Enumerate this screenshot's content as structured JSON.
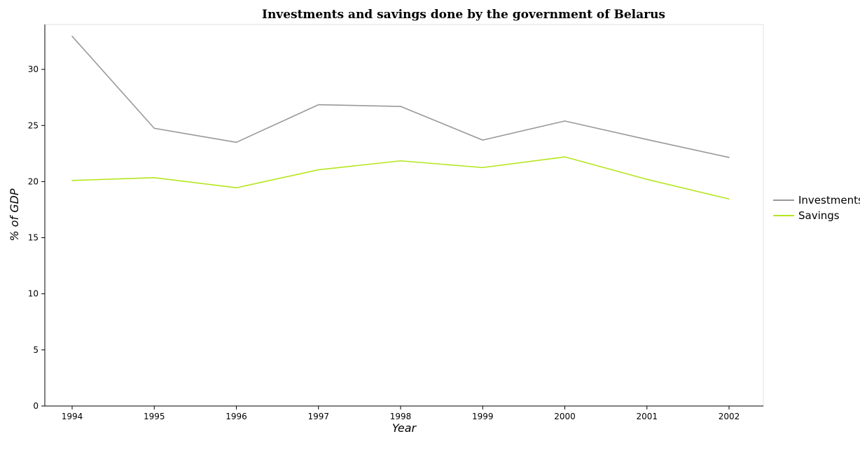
{
  "chart_data": {
    "type": "line",
    "title": "Investments and savings done by the government of Belarus",
    "xlabel": "Year",
    "ylabel": "% of GDP",
    "categories": [
      "1994",
      "1995",
      "1996",
      "1997",
      "1998",
      "1999",
      "2000",
      "2001",
      "2002"
    ],
    "ylim": [
      0,
      34
    ],
    "yticks": [
      0,
      5,
      10,
      15,
      20,
      25,
      30
    ],
    "grid": false,
    "legend_position": "right",
    "series": [
      {
        "name": "Investments",
        "color": "#999999",
        "values": [
          32.95,
          24.75,
          23.5,
          26.85,
          26.7,
          23.7,
          25.4,
          23.75,
          22.15
        ]
      },
      {
        "name": "Savings",
        "color": "#b5e61d",
        "values": [
          20.1,
          20.35,
          19.45,
          21.05,
          21.85,
          21.25,
          22.2,
          20.2,
          18.45
        ]
      }
    ]
  }
}
